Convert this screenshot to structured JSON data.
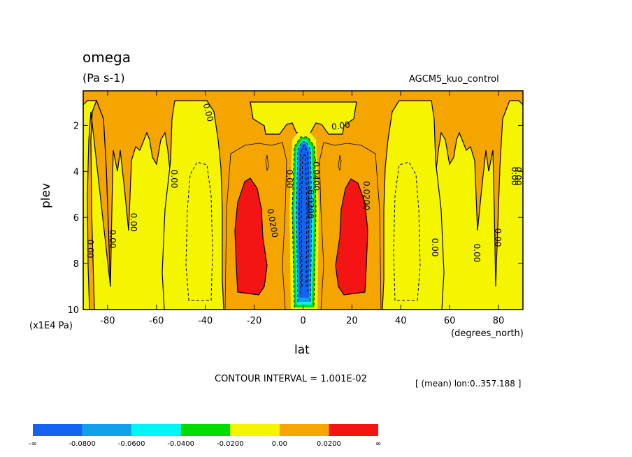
{
  "chart_data": {
    "type": "heatmap",
    "title": "omega",
    "units": "(Pa s-1)",
    "dataset": "AGCM5_kuo_control",
    "xlabel": "lat",
    "x_unit": "(degrees_north)",
    "ylabel": "plev",
    "y_unit": "(x1E4 Pa)",
    "xlim": [
      -90,
      90
    ],
    "ylim": [
      10,
      0.5
    ],
    "x_ticks": [
      "-80",
      "-60",
      "-40",
      "-20",
      "0",
      "20",
      "40",
      "60",
      "80"
    ],
    "x_tick_values": [
      -80,
      -60,
      -40,
      -20,
      0,
      20,
      40,
      60,
      80
    ],
    "y_ticks": [
      "2",
      "4",
      "6",
      "8",
      "10"
    ],
    "y_tick_values": [
      2,
      4,
      6,
      8,
      10
    ],
    "contour_interval": "CONTOUR INTERVAL = 1.001E-02",
    "mean_note": "[ (mean) lon:0..357.188 ]",
    "contour_labels": [
      "0.00",
      "0.00",
      "0.00",
      "0.00",
      "0.00",
      "0.00",
      "0.00",
      "0.00",
      "0.00",
      "0.00",
      "0.00",
      "0.00",
      "0.0200",
      "0.0200",
      "-0.0200",
      "-0.0400"
    ],
    "colorbar": {
      "colors": [
        "#1463f0",
        "#10a0e8",
        "#00f5f5",
        "#00dc00",
        "#f5f500",
        "#f5a500",
        "#f51414"
      ],
      "labels": [
        "-∞",
        "-0.0800",
        "-0.0600",
        "-0.0400",
        "-0.0200",
        "0.00",
        "0.0200",
        "∞"
      ]
    },
    "fill_colors": {
      "background": "#f5a500",
      "positive_low": "#f5f500",
      "strong_ascent": "#1463f0",
      "ascent_mid": "#10a0e8",
      "ascent_weak": "#00dc00",
      "strong_descent": "#f51414"
    }
  }
}
